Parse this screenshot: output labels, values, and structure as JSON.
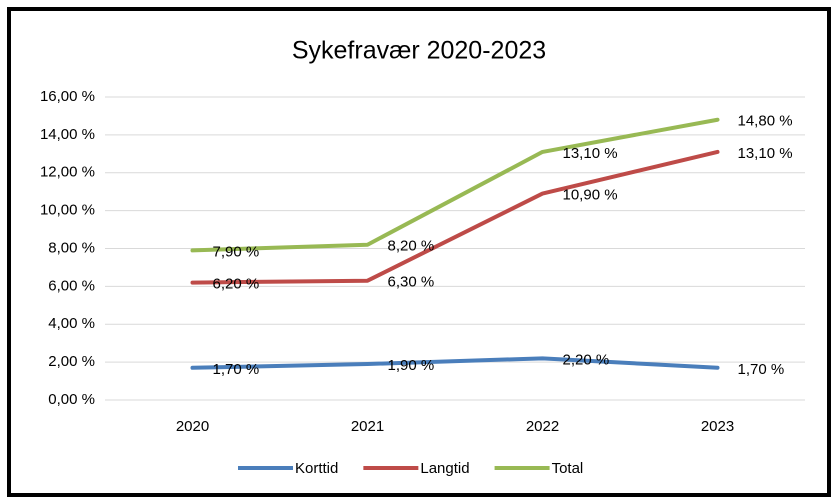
{
  "chart_data": {
    "type": "line",
    "title": "Sykefravær 2020-2023",
    "categories": [
      "2020",
      "2021",
      "2022",
      "2023"
    ],
    "series": [
      {
        "name": "Korttid",
        "color": "#4a7ebb",
        "values": [
          1.7,
          1.9,
          2.2,
          1.7
        ],
        "value_labels": [
          "1,70 %",
          "1,90 %",
          "2,20 %",
          "1,70 %"
        ]
      },
      {
        "name": "Langtid",
        "color": "#be4b48",
        "values": [
          6.2,
          6.3,
          10.9,
          13.1
        ],
        "value_labels": [
          "6,20 %",
          "6,30 %",
          "10,90 %",
          "13,10 %"
        ]
      },
      {
        "name": "Total",
        "color": "#98b954",
        "values": [
          7.9,
          8.2,
          13.1,
          14.8
        ],
        "value_labels": [
          "7,90 %",
          "8,20 %",
          "13,10 %",
          "14,80 %"
        ]
      }
    ],
    "ylim": [
      0,
      16
    ],
    "yticks": [
      {
        "value": 0,
        "label": "0,00 %"
      },
      {
        "value": 2,
        "label": "2,00 %"
      },
      {
        "value": 4,
        "label": "4,00 %"
      },
      {
        "value": 6,
        "label": "6,00 %"
      },
      {
        "value": 8,
        "label": "8,00 %"
      },
      {
        "value": 10,
        "label": "10,00 %"
      },
      {
        "value": 12,
        "label": "12,00 %"
      },
      {
        "value": 14,
        "label": "14,00 %"
      },
      {
        "value": 16,
        "label": "16,00 %"
      }
    ],
    "grid": true,
    "legend": "bottom"
  }
}
